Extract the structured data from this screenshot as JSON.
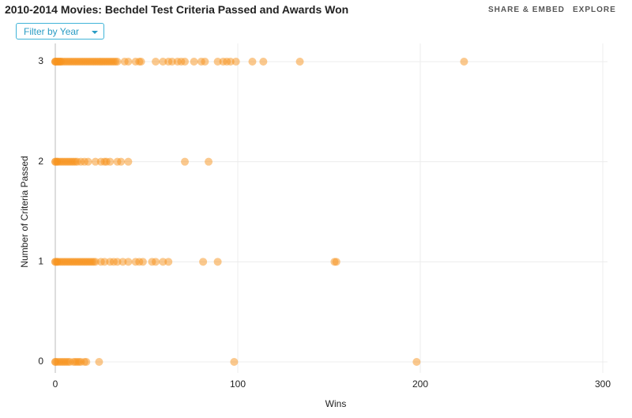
{
  "header": {
    "share": "SHARE & EMBED",
    "explore": "EXPLORE",
    "filter": "Filter by Year"
  },
  "chart_data": {
    "type": "scatter",
    "title": "2010-2014 Movies: Bechdel Test Criteria Passed and Awards Won",
    "x_label": "Wins",
    "y_label": "Number of Criteria Passed",
    "xlim": [
      0,
      300
    ],
    "xticks": [
      0,
      100,
      200,
      300
    ],
    "ylim": [
      0,
      3
    ],
    "yticks": [
      0,
      1,
      2,
      3
    ],
    "grid": true,
    "series": [
      {
        "color": "#f7941d",
        "x": [
          0,
          0,
          0,
          1,
          1,
          2,
          2,
          3,
          3,
          4,
          5,
          6,
          7,
          8,
          9,
          10,
          11,
          12,
          13,
          14,
          15,
          16,
          17,
          18,
          19,
          20,
          21,
          22,
          23,
          24,
          25,
          26,
          27,
          28,
          29,
          30,
          31,
          32,
          33,
          34,
          38,
          40,
          44,
          46,
          47,
          55,
          59,
          62,
          64,
          67,
          69,
          71,
          76,
          80,
          82,
          89,
          92,
          94,
          96,
          99,
          108,
          114,
          134,
          224
        ],
        "values": [
          3,
          3,
          3,
          3,
          3,
          3,
          3,
          3,
          3,
          3,
          3,
          3,
          3,
          3,
          3,
          3,
          3,
          3,
          3,
          3,
          3,
          3,
          3,
          3,
          3,
          3,
          3,
          3,
          3,
          3,
          3,
          3,
          3,
          3,
          3,
          3,
          3,
          3,
          3,
          3,
          3,
          3,
          3,
          3,
          3,
          3,
          3,
          3,
          3,
          3,
          3,
          3,
          3,
          3,
          3,
          3,
          3,
          3,
          3,
          3,
          3,
          3,
          3,
          3
        ]
      },
      {
        "color": "#f7941d",
        "x": [
          0,
          0,
          1,
          1,
          2,
          3,
          4,
          5,
          6,
          7,
          8,
          9,
          10,
          11,
          12,
          14,
          16,
          18,
          22,
          25,
          27,
          28,
          30,
          34,
          36,
          40,
          71,
          84
        ],
        "values": [
          2,
          2,
          2,
          2,
          2,
          2,
          2,
          2,
          2,
          2,
          2,
          2,
          2,
          2,
          2,
          2,
          2,
          2,
          2,
          2,
          2,
          2,
          2,
          2,
          2,
          2,
          2,
          2
        ]
      },
      {
        "color": "#f7941d",
        "x": [
          0,
          0,
          1,
          1,
          2,
          3,
          4,
          5,
          6,
          7,
          8,
          9,
          10,
          11,
          12,
          13,
          14,
          15,
          16,
          17,
          18,
          19,
          20,
          21,
          22,
          25,
          27,
          30,
          32,
          34,
          37,
          40,
          44,
          46,
          48,
          53,
          55,
          59,
          62,
          81,
          89,
          153,
          154
        ],
        "values": [
          1,
          1,
          1,
          1,
          1,
          1,
          1,
          1,
          1,
          1,
          1,
          1,
          1,
          1,
          1,
          1,
          1,
          1,
          1,
          1,
          1,
          1,
          1,
          1,
          1,
          1,
          1,
          1,
          1,
          1,
          1,
          1,
          1,
          1,
          1,
          1,
          1,
          1,
          1,
          1,
          1,
          1,
          1
        ]
      },
      {
        "color": "#f7941d",
        "x": [
          0,
          0,
          1,
          2,
          3,
          4,
          5,
          6,
          7,
          8,
          10,
          11,
          12,
          13,
          14,
          16,
          17,
          24,
          98,
          198
        ],
        "values": [
          0,
          0,
          0,
          0,
          0,
          0,
          0,
          0,
          0,
          0,
          0,
          0,
          0,
          0,
          0,
          0,
          0,
          0,
          0,
          0
        ]
      }
    ]
  }
}
